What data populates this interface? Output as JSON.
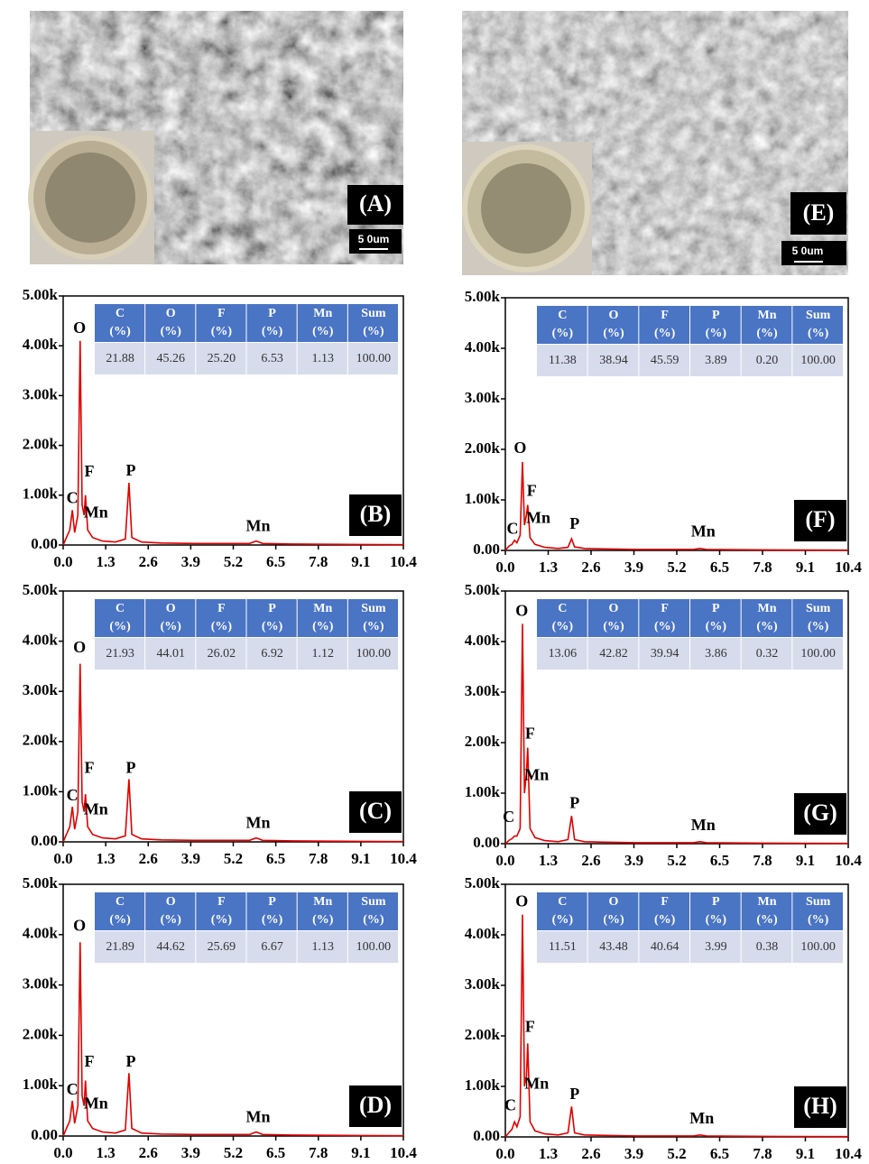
{
  "panels": [
    {
      "label": "(A)",
      "scale_bar": "5 0um"
    },
    {
      "label": "(E)",
      "scale_bar": "5 0um"
    }
  ],
  "chart_data": [
    {
      "type": "line",
      "panel_label": "(B)",
      "color": "#e00000",
      "xlim": [
        0,
        10.4
      ],
      "ylim": [
        0,
        5000
      ],
      "xticks": [
        {
          "value": 0,
          "label": "0.0"
        },
        1.3,
        2.6,
        3.9,
        5.2,
        6.5,
        7.8,
        9.1,
        10.4
      ],
      "yticks": [
        {
          "value": 0,
          "label": "0.00"
        },
        {
          "value": 1000,
          "label": "1.00k"
        },
        {
          "value": 2000,
          "label": "2.00k"
        },
        {
          "value": 3000,
          "label": "3.00k"
        },
        {
          "value": 4000,
          "label": "4.00k"
        },
        {
          "value": 5000,
          "label": "5.00k"
        }
      ],
      "x": [
        0,
        0.1,
        0.2,
        0.28,
        0.35,
        0.45,
        0.52,
        0.58,
        0.64,
        0.68,
        0.75,
        0.9,
        1.2,
        1.6,
        1.9,
        2.01,
        2.1,
        2.4,
        3,
        4,
        5,
        5.7,
        5.9,
        6.1,
        7,
        8,
        9,
        10.4
      ],
      "values": [
        0,
        150,
        300,
        700,
        250,
        600,
        4100,
        800,
        600,
        1000,
        300,
        150,
        80,
        60,
        120,
        1250,
        150,
        60,
        40,
        30,
        30,
        30,
        80,
        30,
        20,
        15,
        10,
        5
      ],
      "annotations": [
        {
          "text": "C",
          "x": 0.28,
          "y": 920
        },
        {
          "text": "O",
          "x": 0.5,
          "y": 4330
        },
        {
          "text": "F",
          "x": 0.8,
          "y": 1450
        },
        {
          "text": "Mn",
          "x": 1.0,
          "y": 630
        },
        {
          "text": "P",
          "x": 2.07,
          "y": 1470
        },
        {
          "text": "Mn",
          "x": 5.96,
          "y": 360
        }
      ],
      "table": {
        "header": [
          [
            "C",
            "(%)"
          ],
          [
            "O",
            "(%)"
          ],
          [
            "F",
            "(%)"
          ],
          [
            "P",
            "(%)"
          ],
          [
            "Mn",
            "(%)"
          ],
          [
            "Sum",
            "(%)"
          ]
        ],
        "rows": [
          [
            "21.88",
            "45.26",
            "25.20",
            "6.53",
            "1.13",
            "100.00"
          ]
        ]
      }
    },
    {
      "type": "line",
      "panel_label": "(C)",
      "color": "#e00000",
      "xlim": [
        0,
        10.4
      ],
      "ylim": [
        0,
        5000
      ],
      "xticks": [
        {
          "value": 0,
          "label": "0.0"
        },
        1.3,
        2.6,
        3.9,
        5.2,
        6.5,
        7.8,
        9.1,
        10.4
      ],
      "yticks": [
        {
          "value": 0,
          "label": "0.00"
        },
        {
          "value": 1000,
          "label": "1.00k"
        },
        {
          "value": 2000,
          "label": "2.00k"
        },
        {
          "value": 3000,
          "label": "3.00k"
        },
        {
          "value": 4000,
          "label": "4.00k"
        },
        {
          "value": 5000,
          "label": "5.00k"
        }
      ],
      "x": [
        0,
        0.1,
        0.2,
        0.28,
        0.35,
        0.45,
        0.52,
        0.58,
        0.64,
        0.68,
        0.75,
        0.9,
        1.2,
        1.6,
        1.9,
        2.01,
        2.1,
        2.4,
        3,
        4,
        5,
        5.7,
        5.9,
        6.1,
        7,
        8,
        9,
        10.4
      ],
      "values": [
        0,
        150,
        300,
        700,
        250,
        600,
        3550,
        800,
        600,
        950,
        300,
        150,
        80,
        60,
        120,
        1250,
        150,
        60,
        40,
        30,
        30,
        30,
        80,
        30,
        20,
        15,
        10,
        5
      ],
      "annotations": [
        {
          "text": "C",
          "x": 0.28,
          "y": 900
        },
        {
          "text": "O",
          "x": 0.5,
          "y": 3850
        },
        {
          "text": "F",
          "x": 0.8,
          "y": 1450
        },
        {
          "text": "Mn",
          "x": 1.0,
          "y": 620
        },
        {
          "text": "P",
          "x": 2.07,
          "y": 1450
        },
        {
          "text": "Mn",
          "x": 5.96,
          "y": 350
        }
      ],
      "table": {
        "header": [
          [
            "C",
            "(%)"
          ],
          [
            "O",
            "(%)"
          ],
          [
            "F",
            "(%)"
          ],
          [
            "P",
            "(%)"
          ],
          [
            "Mn",
            "(%)"
          ],
          [
            "Sum",
            "(%)"
          ]
        ],
        "rows": [
          [
            "21.93",
            "44.01",
            "26.02",
            "6.92",
            "1.12",
            "100.00"
          ]
        ]
      }
    },
    {
      "type": "line",
      "panel_label": "(D)",
      "color": "#e00000",
      "xlim": [
        0,
        10.4
      ],
      "ylim": [
        0,
        5000
      ],
      "xticks": [
        {
          "value": 0,
          "label": "0.0"
        },
        1.3,
        2.6,
        3.9,
        5.2,
        6.5,
        7.8,
        9.1,
        10.4
      ],
      "yticks": [
        {
          "value": 0,
          "label": "0.00"
        },
        {
          "value": 1000,
          "label": "1.00k"
        },
        {
          "value": 2000,
          "label": "2.00k"
        },
        {
          "value": 3000,
          "label": "3.00k"
        },
        {
          "value": 4000,
          "label": "4.00k"
        },
        {
          "value": 5000,
          "label": "5.00k"
        }
      ],
      "x": [
        0,
        0.1,
        0.2,
        0.28,
        0.35,
        0.45,
        0.52,
        0.58,
        0.64,
        0.68,
        0.75,
        0.9,
        1.2,
        1.6,
        1.9,
        2.01,
        2.1,
        2.4,
        3,
        4,
        5,
        5.7,
        5.9,
        6.1,
        7,
        8,
        9,
        10.4
      ],
      "values": [
        0,
        150,
        300,
        700,
        250,
        600,
        3850,
        800,
        600,
        1100,
        300,
        150,
        80,
        60,
        120,
        1250,
        150,
        60,
        40,
        30,
        30,
        30,
        80,
        30,
        20,
        15,
        10,
        5
      ],
      "annotations": [
        {
          "text": "C",
          "x": 0.28,
          "y": 900
        },
        {
          "text": "O",
          "x": 0.5,
          "y": 4150
        },
        {
          "text": "F",
          "x": 0.8,
          "y": 1450
        },
        {
          "text": "Mn",
          "x": 1.0,
          "y": 620
        },
        {
          "text": "P",
          "x": 2.07,
          "y": 1450
        },
        {
          "text": "Mn",
          "x": 5.96,
          "y": 350
        }
      ],
      "table": {
        "header": [
          [
            "C",
            "(%)"
          ],
          [
            "O",
            "(%)"
          ],
          [
            "F",
            "(%)"
          ],
          [
            "P",
            "(%)"
          ],
          [
            "Mn",
            "(%)"
          ],
          [
            "Sum",
            "(%)"
          ]
        ],
        "rows": [
          [
            "21.89",
            "44.62",
            "25.69",
            "6.67",
            "1.13",
            "100.00"
          ]
        ]
      }
    },
    {
      "type": "line",
      "panel_label": "(F)",
      "color": "#e00000",
      "xlim": [
        0,
        10.4
      ],
      "ylim": [
        0,
        5000
      ],
      "xticks": [
        {
          "value": 0,
          "label": "0.0"
        },
        1.3,
        2.6,
        3.9,
        5.2,
        6.5,
        7.8,
        9.1,
        10.4
      ],
      "yticks": [
        {
          "value": 0,
          "label": "0.00"
        },
        {
          "value": 1000,
          "label": "1.00k"
        },
        {
          "value": 2000,
          "label": "2.00k"
        },
        {
          "value": 3000,
          "label": "3.00k"
        },
        {
          "value": 4000,
          "label": "4.00k"
        },
        {
          "value": 5000,
          "label": "5.00k"
        }
      ],
      "x": [
        0,
        0.1,
        0.2,
        0.28,
        0.35,
        0.45,
        0.52,
        0.58,
        0.64,
        0.68,
        0.75,
        0.9,
        1.2,
        1.6,
        1.9,
        2.01,
        2.1,
        2.4,
        3,
        4,
        5,
        5.7,
        5.9,
        6.1,
        7,
        8,
        9,
        10.4
      ],
      "values": [
        0,
        80,
        120,
        200,
        150,
        300,
        1750,
        500,
        700,
        900,
        250,
        120,
        60,
        40,
        60,
        230,
        70,
        40,
        30,
        20,
        20,
        20,
        40,
        20,
        15,
        10,
        8,
        5
      ],
      "annotations": [
        {
          "text": "C",
          "x": 0.22,
          "y": 400
        },
        {
          "text": "O",
          "x": 0.45,
          "y": 2000
        },
        {
          "text": "F",
          "x": 0.8,
          "y": 1150
        },
        {
          "text": "Mn",
          "x": 1.0,
          "y": 620
        },
        {
          "text": "P",
          "x": 2.1,
          "y": 500
        },
        {
          "text": "Mn",
          "x": 6.0,
          "y": 350
        }
      ],
      "table": {
        "header": [
          [
            "C",
            "(%)"
          ],
          [
            "O",
            "(%)"
          ],
          [
            "F",
            "(%)"
          ],
          [
            "P",
            "(%)"
          ],
          [
            "Mn",
            "(%)"
          ],
          [
            "Sum",
            "(%)"
          ]
        ],
        "rows": [
          [
            "11.38",
            "38.94",
            "45.59",
            "3.89",
            "0.20",
            "100.00"
          ]
        ]
      }
    },
    {
      "type": "line",
      "panel_label": "(G)",
      "color": "#e00000",
      "xlim": [
        0,
        10.4
      ],
      "ylim": [
        0,
        5000
      ],
      "xticks": [
        {
          "value": 0,
          "label": "0.0"
        },
        1.3,
        2.6,
        3.9,
        5.2,
        6.5,
        7.8,
        9.1,
        10.4
      ],
      "yticks": [
        {
          "value": 0,
          "label": "0.00"
        },
        {
          "value": 1000,
          "label": "1.00k"
        },
        {
          "value": 2000,
          "label": "2.00k"
        },
        {
          "value": 3000,
          "label": "3.00k"
        },
        {
          "value": 4000,
          "label": "4.00k"
        },
        {
          "value": 5000,
          "label": "5.00k"
        }
      ],
      "x": [
        0,
        0.1,
        0.2,
        0.28,
        0.35,
        0.45,
        0.52,
        0.58,
        0.64,
        0.68,
        0.75,
        0.9,
        1.2,
        1.6,
        1.9,
        2.01,
        2.1,
        2.4,
        3,
        4,
        5,
        5.7,
        5.9,
        6.1,
        7,
        8,
        9,
        10.4
      ],
      "values": [
        0,
        60,
        100,
        150,
        150,
        300,
        4350,
        1000,
        1400,
        1900,
        300,
        120,
        60,
        40,
        80,
        550,
        80,
        40,
        30,
        20,
        20,
        20,
        40,
        20,
        15,
        10,
        8,
        5
      ],
      "annotations": [
        {
          "text": "C",
          "x": 0.1,
          "y": 500
        },
        {
          "text": "O",
          "x": 0.5,
          "y": 4580
        },
        {
          "text": "F",
          "x": 0.75,
          "y": 2150
        },
        {
          "text": "Mn",
          "x": 0.95,
          "y": 1330
        },
        {
          "text": "P",
          "x": 2.1,
          "y": 780
        },
        {
          "text": "Mn",
          "x": 6.0,
          "y": 340
        }
      ],
      "table": {
        "header": [
          [
            "C",
            "(%)"
          ],
          [
            "O",
            "(%)"
          ],
          [
            "F",
            "(%)"
          ],
          [
            "P",
            "(%)"
          ],
          [
            "Mn",
            "(%)"
          ],
          [
            "Sum",
            "(%)"
          ]
        ],
        "rows": [
          [
            "13.06",
            "42.82",
            "39.94",
            "3.86",
            "0.32",
            "100.00"
          ]
        ]
      }
    },
    {
      "type": "line",
      "panel_label": "(H)",
      "color": "#e00000",
      "xlim": [
        0,
        10.4
      ],
      "ylim": [
        0,
        5000
      ],
      "xticks": [
        {
          "value": 0,
          "label": "0.0"
        },
        1.3,
        2.6,
        3.9,
        5.2,
        6.5,
        7.8,
        9.1,
        10.4
      ],
      "yticks": [
        {
          "value": 0,
          "label": "0.00"
        },
        {
          "value": 1000,
          "label": "1.00k"
        },
        {
          "value": 2000,
          "label": "2.00k"
        },
        {
          "value": 3000,
          "label": "3.00k"
        },
        {
          "value": 4000,
          "label": "4.00k"
        },
        {
          "value": 5000,
          "label": "5.00k"
        }
      ],
      "x": [
        0,
        0.1,
        0.2,
        0.28,
        0.35,
        0.45,
        0.52,
        0.58,
        0.64,
        0.68,
        0.75,
        0.9,
        1.2,
        1.6,
        1.9,
        2.01,
        2.1,
        2.4,
        3,
        4,
        5,
        5.7,
        5.9,
        6.1,
        7,
        8,
        9,
        10.4
      ],
      "values": [
        0,
        80,
        150,
        300,
        200,
        400,
        4400,
        1000,
        1200,
        1850,
        300,
        120,
        60,
        40,
        80,
        600,
        80,
        40,
        30,
        20,
        20,
        20,
        40,
        20,
        15,
        10,
        8,
        5
      ],
      "annotations": [
        {
          "text": "C",
          "x": 0.15,
          "y": 600
        },
        {
          "text": "O",
          "x": 0.5,
          "y": 4640
        },
        {
          "text": "F",
          "x": 0.75,
          "y": 2150
        },
        {
          "text": "Mn",
          "x": 0.95,
          "y": 1030
        },
        {
          "text": "P",
          "x": 2.1,
          "y": 820
        },
        {
          "text": "Mn",
          "x": 5.96,
          "y": 340
        }
      ],
      "table": {
        "header": [
          [
            "C",
            "(%)"
          ],
          [
            "O",
            "(%)"
          ],
          [
            "F",
            "(%)"
          ],
          [
            "P",
            "(%)"
          ],
          [
            "Mn",
            "(%)"
          ],
          [
            "Sum",
            "(%)"
          ]
        ],
        "rows": [
          [
            "11.51",
            "43.48",
            "40.64",
            "3.99",
            "0.38",
            "100.00"
          ]
        ]
      }
    }
  ]
}
